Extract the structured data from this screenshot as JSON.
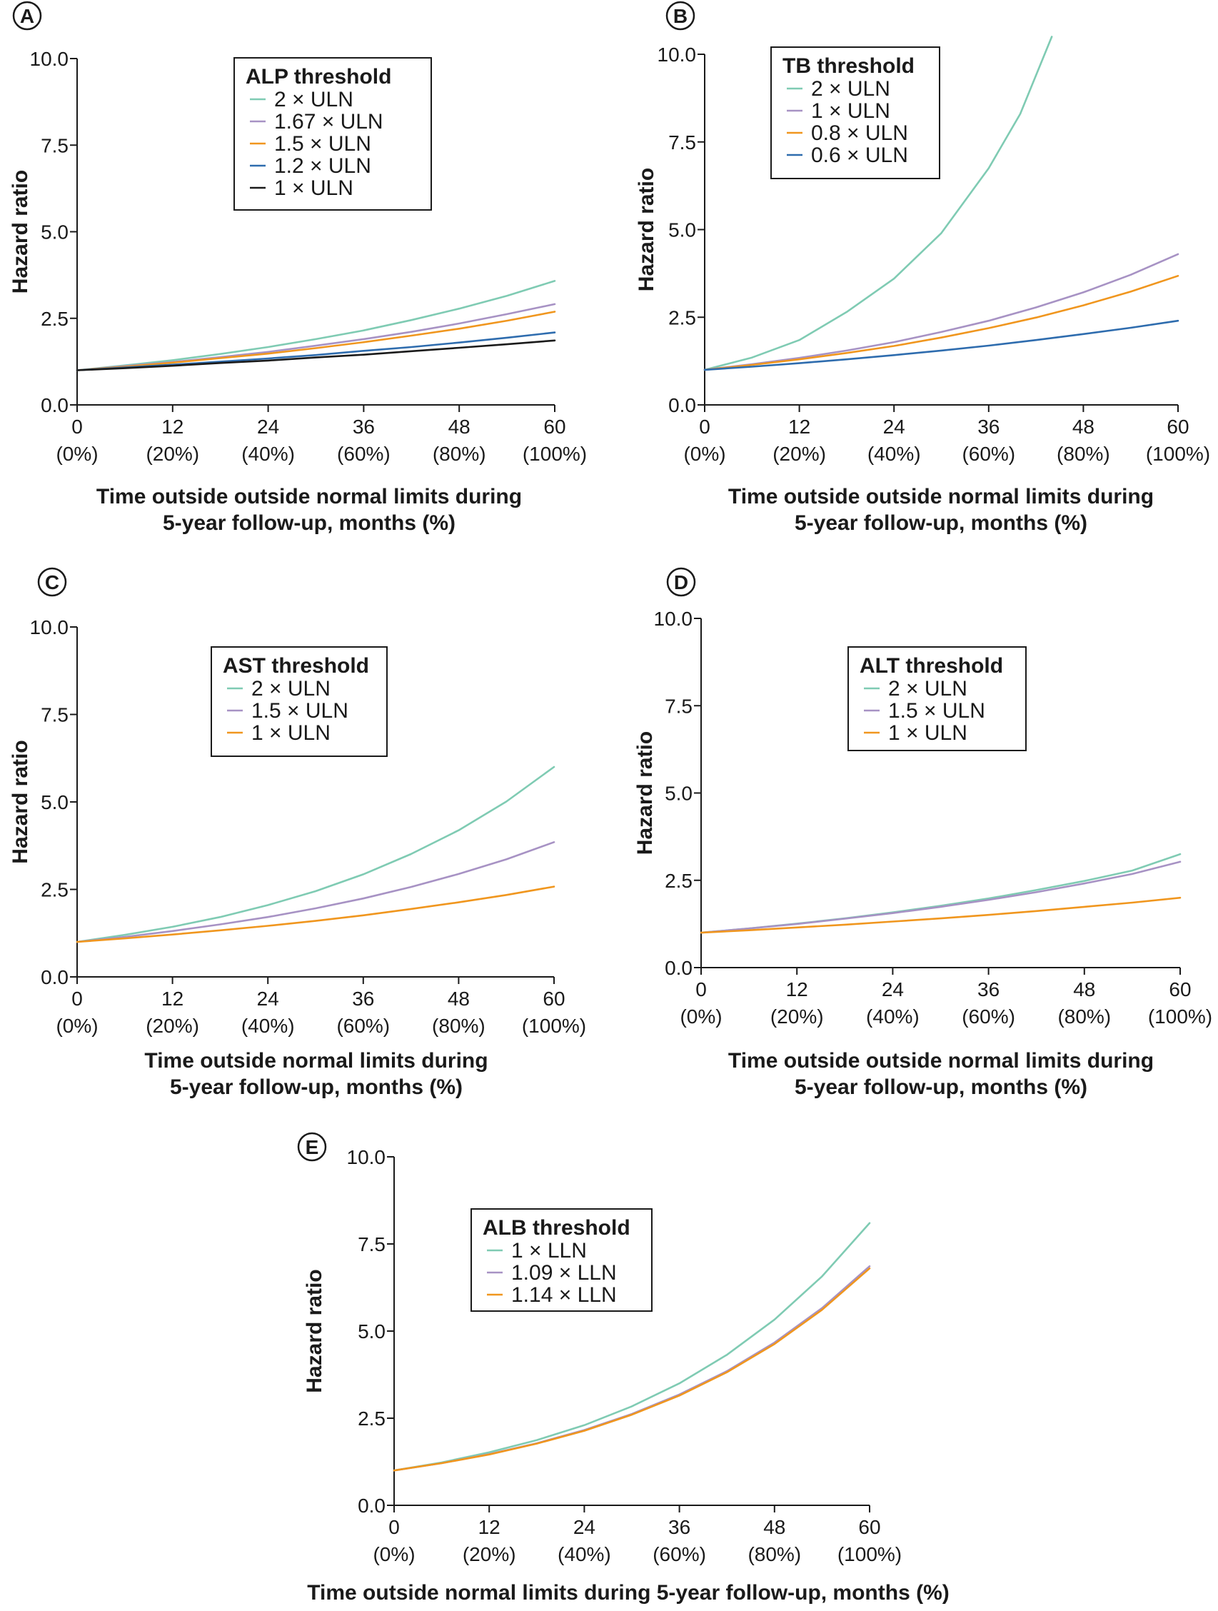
{
  "chart_data": [
    {
      "panel": "A",
      "type": "line",
      "ylabel": "Hazard ratio",
      "xlabel_lines": [
        "Time outside outside normal limits during",
        "5-year follow-up, months (%)"
      ],
      "ylim": [
        0,
        10
      ],
      "xlim": [
        0,
        60
      ],
      "yticks": [
        "0.0",
        "2.5",
        "5.0",
        "7.5",
        "10.0"
      ],
      "xticks": [
        [
          "0",
          "(0%)"
        ],
        [
          "12",
          "(20%)"
        ],
        [
          "24",
          "(40%)"
        ],
        [
          "36",
          "(60%)"
        ],
        [
          "48",
          "(80%)"
        ],
        [
          "60",
          "(100%)"
        ]
      ],
      "legend_title": "ALP threshold",
      "legend_position": "top-center",
      "x": [
        0,
        6,
        12,
        18,
        24,
        30,
        36,
        42,
        48,
        54,
        60
      ],
      "series": [
        {
          "name": "2 × ULN",
          "color": "#7fcbb3",
          "values": [
            1.0,
            1.14,
            1.29,
            1.47,
            1.67,
            1.9,
            2.15,
            2.45,
            2.78,
            3.15,
            3.58
          ]
        },
        {
          "name": "1.67 × ULN",
          "color": "#a792c4",
          "values": [
            1.0,
            1.12,
            1.24,
            1.38,
            1.53,
            1.71,
            1.9,
            2.11,
            2.35,
            2.62,
            2.91
          ]
        },
        {
          "name": "1.5 × ULN",
          "color": "#f0961e",
          "values": [
            1.0,
            1.1,
            1.22,
            1.35,
            1.48,
            1.64,
            1.81,
            2.0,
            2.2,
            2.43,
            2.69
          ]
        },
        {
          "name": "1.2 × ULN",
          "color": "#2e6cae",
          "values": [
            1.0,
            1.08,
            1.16,
            1.25,
            1.34,
            1.44,
            1.56,
            1.67,
            1.8,
            1.94,
            2.09
          ]
        },
        {
          "name": "1 × ULN",
          "color": "#1a1a1a",
          "values": [
            1.0,
            1.06,
            1.13,
            1.21,
            1.28,
            1.37,
            1.45,
            1.55,
            1.65,
            1.75,
            1.86
          ]
        }
      ]
    },
    {
      "panel": "B",
      "type": "line",
      "ylabel": "Hazard ratio",
      "xlabel_lines": [
        "Time outside outside normal limits during",
        "5-year follow-up, months (%)"
      ],
      "ylim": [
        0,
        10
      ],
      "xlim": [
        0,
        60
      ],
      "yticks": [
        "0.0",
        "2.5",
        "5.0",
        "7.5",
        "10.0"
      ],
      "xticks": [
        [
          "0",
          "(0%)"
        ],
        [
          "12",
          "(20%)"
        ],
        [
          "24",
          "(40%)"
        ],
        [
          "36",
          "(60%)"
        ],
        [
          "48",
          "(80%)"
        ],
        [
          "60",
          "(100%)"
        ]
      ],
      "legend_title": "TB threshold",
      "legend_position": "top-center",
      "x": [
        0,
        6,
        12,
        18,
        24,
        30,
        36,
        40,
        44
      ],
      "series": [
        {
          "name": "2 × ULN",
          "color": "#7fcbb3",
          "values": [
            1.0,
            1.35,
            1.85,
            2.65,
            3.6,
            4.9,
            6.75,
            8.3,
            10.5
          ]
        },
        {
          "name": "1 × ULN",
          "color": "#a792c4",
          "x": [
            0,
            6,
            12,
            18,
            24,
            30,
            36,
            42,
            48,
            54,
            60
          ],
          "values": [
            1.0,
            1.16,
            1.34,
            1.55,
            1.79,
            2.08,
            2.4,
            2.78,
            3.21,
            3.71,
            4.3
          ]
        },
        {
          "name": "0.8 × ULN",
          "color": "#f0961e",
          "x": [
            0,
            6,
            12,
            18,
            24,
            30,
            36,
            42,
            48,
            54,
            60
          ],
          "values": [
            1.0,
            1.14,
            1.3,
            1.48,
            1.68,
            1.92,
            2.19,
            2.49,
            2.84,
            3.23,
            3.68
          ]
        },
        {
          "name": "0.6 × ULN",
          "color": "#2e6cae",
          "x": [
            0,
            6,
            12,
            18,
            24,
            30,
            36,
            42,
            48,
            54,
            60
          ],
          "values": [
            1.0,
            1.09,
            1.19,
            1.3,
            1.42,
            1.55,
            1.69,
            1.85,
            2.02,
            2.2,
            2.4
          ]
        }
      ]
    },
    {
      "panel": "C",
      "type": "line",
      "ylabel": "Hazard ratio",
      "xlabel_lines": [
        "Time outside normal limits during",
        "5-year follow-up, months (%)"
      ],
      "ylim": [
        0,
        10
      ],
      "xlim": [
        0,
        60
      ],
      "yticks": [
        "0.0",
        "2.5",
        "5.0",
        "7.5",
        "10.0"
      ],
      "xticks": [
        [
          "0",
          "(0%)"
        ],
        [
          "12",
          "(20%)"
        ],
        [
          "24",
          "(40%)"
        ],
        [
          "36",
          "(60%)"
        ],
        [
          "48",
          "(80%)"
        ],
        [
          "60",
          "(100%)"
        ]
      ],
      "legend_title": "AST threshold",
      "legend_position": "top-center",
      "x": [
        0,
        6,
        12,
        18,
        24,
        30,
        36,
        42,
        48,
        54,
        60
      ],
      "series": [
        {
          "name": "2 × ULN",
          "color": "#7fcbb3",
          "values": [
            1.0,
            1.2,
            1.43,
            1.71,
            2.05,
            2.45,
            2.93,
            3.51,
            4.19,
            5.01,
            6.0
          ]
        },
        {
          "name": "1.5 × ULN",
          "color": "#a792c4",
          "values": [
            1.0,
            1.14,
            1.31,
            1.5,
            1.71,
            1.96,
            2.24,
            2.57,
            2.94,
            3.36,
            3.85
          ]
        },
        {
          "name": "1 × ULN",
          "color": "#f0961e",
          "values": [
            1.0,
            1.1,
            1.21,
            1.33,
            1.46,
            1.6,
            1.76,
            1.94,
            2.13,
            2.34,
            2.58
          ]
        }
      ]
    },
    {
      "panel": "D",
      "type": "line",
      "ylabel": "Hazard ratio",
      "xlabel_lines": [
        "Time outside outside normal limits during",
        "5-year follow-up, months (%)"
      ],
      "ylim": [
        0,
        10
      ],
      "xlim": [
        0,
        60
      ],
      "yticks": [
        "0.0",
        "2.5",
        "5.0",
        "7.5",
        "10.0"
      ],
      "xticks": [
        [
          "0",
          "(0%)"
        ],
        [
          "12",
          "(20%)"
        ],
        [
          "24",
          "(40%)"
        ],
        [
          "36",
          "(60%)"
        ],
        [
          "48",
          "(80%)"
        ],
        [
          "60",
          "(100%)"
        ]
      ],
      "legend_title": "ALT threshold",
      "legend_position": "top-center",
      "x": [
        0,
        6,
        12,
        18,
        24,
        30,
        36,
        42,
        48,
        54,
        60
      ],
      "series": [
        {
          "name": "2 × ULN",
          "color": "#7fcbb3",
          "values": [
            1.0,
            1.12,
            1.26,
            1.41,
            1.58,
            1.77,
            1.98,
            2.22,
            2.48,
            2.78,
            3.25
          ]
        },
        {
          "name": "1.5 × ULN",
          "color": "#a792c4",
          "values": [
            1.0,
            1.12,
            1.25,
            1.4,
            1.56,
            1.74,
            1.94,
            2.16,
            2.41,
            2.68,
            3.03
          ]
        },
        {
          "name": "1 × ULN",
          "color": "#f0961e",
          "values": [
            1.0,
            1.07,
            1.15,
            1.23,
            1.32,
            1.41,
            1.51,
            1.62,
            1.74,
            1.86,
            2.0
          ]
        }
      ]
    },
    {
      "panel": "E",
      "type": "line",
      "ylabel": "Hazard ratio",
      "xlabel_lines": [
        "Time outside normal limits during 5-year follow-up, months (%)"
      ],
      "ylim": [
        0,
        10
      ],
      "xlim": [
        0,
        60
      ],
      "yticks": [
        "0.0",
        "2.5",
        "5.0",
        "7.5",
        "10.0"
      ],
      "xticks": [
        [
          "0",
          "(0%)"
        ],
        [
          "12",
          "(20%)"
        ],
        [
          "24",
          "(40%)"
        ],
        [
          "36",
          "(60%)"
        ],
        [
          "48",
          "(80%)"
        ],
        [
          "60",
          "(100%)"
        ]
      ],
      "legend_title": "ALB threshold",
      "legend_position": "top-left",
      "x": [
        0,
        6,
        12,
        18,
        24,
        30,
        36,
        42,
        48,
        54,
        60
      ],
      "series": [
        {
          "name": "1 × LLN",
          "color": "#7fcbb3",
          "values": [
            1.0,
            1.23,
            1.52,
            1.87,
            2.3,
            2.84,
            3.5,
            4.32,
            5.33,
            6.57,
            8.1
          ]
        },
        {
          "name": "1.09 × LLN",
          "color": "#a792c4",
          "values": [
            1.0,
            1.21,
            1.47,
            1.78,
            2.16,
            2.62,
            3.18,
            3.85,
            4.67,
            5.66,
            6.86
          ]
        },
        {
          "name": "1.14 × LLN",
          "color": "#f0961e",
          "values": [
            1.0,
            1.21,
            1.46,
            1.77,
            2.14,
            2.6,
            3.15,
            3.82,
            4.63,
            5.61,
            6.8
          ]
        }
      ]
    }
  ]
}
